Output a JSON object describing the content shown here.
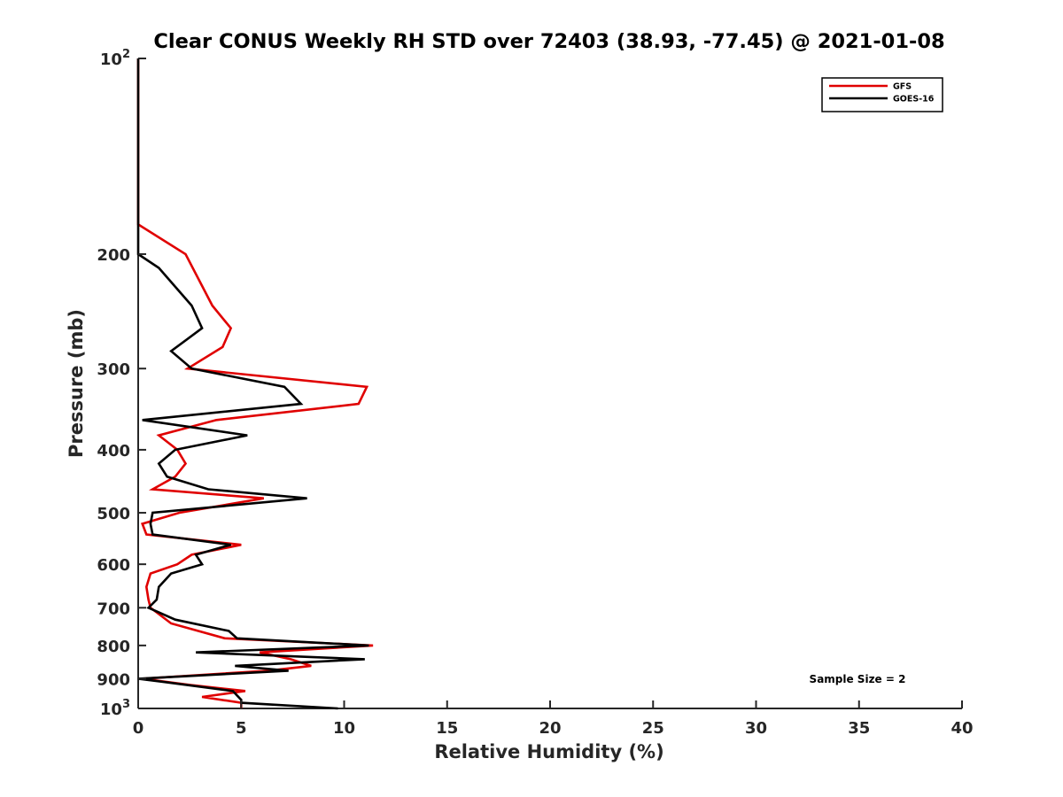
{
  "chart_data": {
    "type": "line",
    "title": "Clear CONUS Weekly RH STD over 72403 (38.93, -77.45) @ 2021-01-08",
    "xlabel": "Relative Humidity (%)",
    "ylabel": "Pressure (mb)",
    "xlim": [
      0,
      40
    ],
    "ylim": [
      100,
      1000
    ],
    "yscale": "log",
    "y_reversed": true,
    "xticks": [
      0,
      5,
      10,
      15,
      20,
      25,
      30,
      35,
      40
    ],
    "xtick_labels": [
      "0",
      "5",
      "10",
      "15",
      "20",
      "25",
      "30",
      "35",
      "40"
    ],
    "yticks": [
      {
        "value": 100,
        "base": "10",
        "exp": "2"
      },
      {
        "value": 200,
        "label": "200"
      },
      {
        "value": 300,
        "label": "300"
      },
      {
        "value": 400,
        "label": "400"
      },
      {
        "value": 500,
        "label": "500"
      },
      {
        "value": 600,
        "label": "600"
      },
      {
        "value": 700,
        "label": "700"
      },
      {
        "value": 800,
        "label": "800"
      },
      {
        "value": 900,
        "label": "900"
      },
      {
        "value": 1000,
        "base": "10",
        "exp": "3"
      }
    ],
    "grid": false,
    "legend_position": "top-right",
    "annotation": "Sample Size = 2",
    "series": [
      {
        "name": "GFS",
        "color": "#e00000",
        "points": [
          [
            0,
            100
          ],
          [
            0,
            180
          ],
          [
            2.3,
            200
          ],
          [
            3.6,
            240
          ],
          [
            4.5,
            260
          ],
          [
            4.1,
            278
          ],
          [
            2.4,
            300
          ],
          [
            11.1,
            320
          ],
          [
            10.7,
            340
          ],
          [
            3.8,
            360
          ],
          [
            1.0,
            380
          ],
          [
            1.9,
            400
          ],
          [
            2.3,
            420
          ],
          [
            1.8,
            440
          ],
          [
            0.7,
            460
          ],
          [
            6.1,
            475
          ],
          [
            2.0,
            500
          ],
          [
            0.2,
            520
          ],
          [
            0.4,
            540
          ],
          [
            5.0,
            560
          ],
          [
            2.6,
            580
          ],
          [
            1.9,
            600
          ],
          [
            0.6,
            620
          ],
          [
            0.4,
            650
          ],
          [
            0.5,
            680
          ],
          [
            0.6,
            700
          ],
          [
            1.6,
            740
          ],
          [
            4.2,
            780
          ],
          [
            11.4,
            800
          ],
          [
            5.9,
            820
          ],
          [
            7.4,
            840
          ],
          [
            8.4,
            860
          ],
          [
            6.3,
            875
          ],
          [
            0.2,
            900
          ],
          [
            2.5,
            920
          ],
          [
            5.2,
            940
          ],
          [
            3.1,
            960
          ],
          [
            5.0,
            980
          ],
          [
            5.0,
            1000
          ]
        ]
      },
      {
        "name": "GOES-16",
        "color": "#000000",
        "points": [
          [
            0,
            100
          ],
          [
            0,
            200
          ],
          [
            1.0,
            210
          ],
          [
            2.6,
            240
          ],
          [
            3.1,
            260
          ],
          [
            1.6,
            282
          ],
          [
            2.6,
            300
          ],
          [
            7.1,
            320
          ],
          [
            7.9,
            340
          ],
          [
            0.2,
            360
          ],
          [
            5.3,
            380
          ],
          [
            1.8,
            400
          ],
          [
            1.0,
            420
          ],
          [
            1.4,
            440
          ],
          [
            3.4,
            460
          ],
          [
            8.2,
            475
          ],
          [
            0.7,
            500
          ],
          [
            0.6,
            520
          ],
          [
            0.7,
            540
          ],
          [
            4.5,
            560
          ],
          [
            2.8,
            580
          ],
          [
            3.1,
            600
          ],
          [
            1.6,
            620
          ],
          [
            1.0,
            650
          ],
          [
            0.9,
            680
          ],
          [
            0.5,
            700
          ],
          [
            1.8,
            730
          ],
          [
            4.4,
            760
          ],
          [
            4.8,
            780
          ],
          [
            11.2,
            800
          ],
          [
            2.8,
            820
          ],
          [
            11.0,
            840
          ],
          [
            4.7,
            860
          ],
          [
            7.3,
            875
          ],
          [
            0.0,
            900
          ],
          [
            1.2,
            910
          ],
          [
            4.6,
            940
          ],
          [
            5.0,
            970
          ],
          [
            5.0,
            980
          ],
          [
            9.7,
            1000
          ]
        ]
      }
    ]
  }
}
